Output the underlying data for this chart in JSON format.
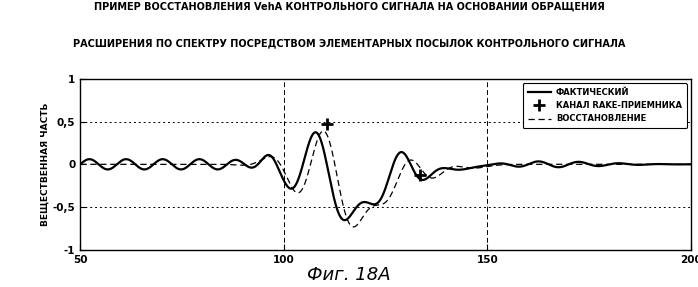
{
  "title_line1": "ПРИМЕР ВОССТАНОВЛЕНИЯ VehA КОНТРОЛЬНОГО СИГНАЛА НА ОСНОВАНИИ ОБРАЩЕНИЯ",
  "title_line2": "РАСШИРЕНИЯ ПО СПЕКТРУ ПОСРЕДСТВОМ ЭЛЕМЕНТАРНЫХ ПОСЫЛОК КОНТРОЛЬНОГО СИГНАЛА",
  "xlabel_fig": "Фиг. 18А",
  "ylabel": "ВЕЩЕСТВЕННАЯ ЧАСТЬ",
  "xlim": [
    50,
    200
  ],
  "ylim": [
    -1,
    1
  ],
  "xticks": [
    50,
    100,
    150,
    200
  ],
  "yticks": [
    -1,
    -0.5,
    0,
    0.5,
    1
  ],
  "ytick_labels": [
    "-1",
    "-0,5",
    "0",
    "0,5",
    "1"
  ],
  "vlines": [
    100,
    150
  ],
  "hlines_dotted": [
    0.5,
    -0.5
  ],
  "legend_labels": [
    "ФАКТИЧЕСКИЙ",
    "КАНАЛ RAKE-ПРИЕМНИКА",
    "ВОССТАНОВЛЕНИЕ"
  ],
  "background_color": "#ffffff",
  "line_color": "#000000",
  "title_fontsize": 7.0,
  "ylabel_fontsize": 6.5,
  "tick_fontsize": 7.5,
  "legend_fontsize": 6.0,
  "fig_label_fontsize": 13
}
